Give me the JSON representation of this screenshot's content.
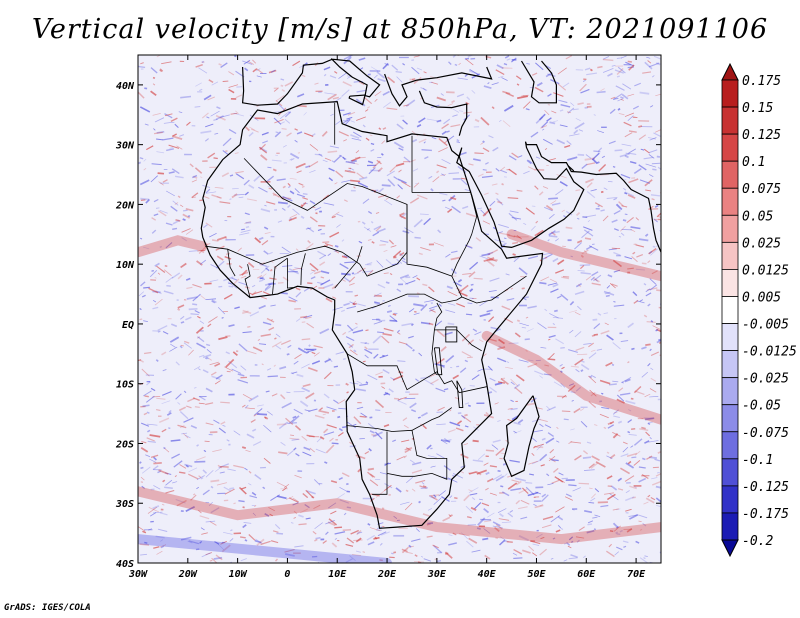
{
  "title": "Vertical velocity [m/s] at 850hPa, VT: 2021091106",
  "footer": "GrADS: IGES/COLA",
  "map": {
    "lon_range": [
      -30,
      75
    ],
    "lat_range": [
      -40,
      45
    ],
    "lon_ticks": [
      {
        "value": -30,
        "label": "30W"
      },
      {
        "value": -20,
        "label": "20W"
      },
      {
        "value": -10,
        "label": "10W"
      },
      {
        "value": 0,
        "label": "0"
      },
      {
        "value": 10,
        "label": "10E"
      },
      {
        "value": 20,
        "label": "20E"
      },
      {
        "value": 30,
        "label": "30E"
      },
      {
        "value": 40,
        "label": "40E"
      },
      {
        "value": 50,
        "label": "50E"
      },
      {
        "value": 60,
        "label": "60E"
      },
      {
        "value": 70,
        "label": "70E"
      }
    ],
    "lat_ticks": [
      {
        "value": 40,
        "label": "40N"
      },
      {
        "value": 30,
        "label": "30N"
      },
      {
        "value": 20,
        "label": "20N"
      },
      {
        "value": 10,
        "label": "10N"
      },
      {
        "value": 0,
        "label": "EQ"
      },
      {
        "value": -10,
        "label": "10S"
      },
      {
        "value": -20,
        "label": "20S"
      },
      {
        "value": -30,
        "label": "30S"
      },
      {
        "value": -40,
        "label": "40S"
      }
    ],
    "colors": {
      "upward": "#d23a3a",
      "downward": "#4a4adf",
      "coast": "#000000"
    }
  },
  "colorbar": {
    "levels": [
      "0.175",
      "0.15",
      "0.125",
      "0.1",
      "0.075",
      "0.05",
      "0.025",
      "0.0125",
      "0.005",
      "-0.005",
      "-0.0125",
      "-0.025",
      "-0.05",
      "-0.075",
      "-0.1",
      "-0.125",
      "-0.175",
      "-0.2"
    ],
    "colors": [
      "#a01414",
      "#b81e1e",
      "#c83232",
      "#d64646",
      "#e06464",
      "#ea8282",
      "#f0a0a0",
      "#f6c4c4",
      "#fbe4e4",
      "#ffffff",
      "#e2e2fb",
      "#c6c6f5",
      "#aaaaef",
      "#8c8ce8",
      "#6e6ee0",
      "#5050d6",
      "#3232c8",
      "#1c1cb4",
      "#0a0a96"
    ]
  }
}
